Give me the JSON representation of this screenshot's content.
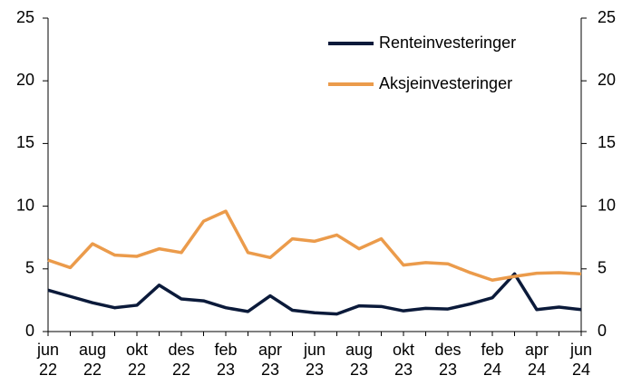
{
  "chart_data": {
    "type": "line",
    "categories": [
      "jun 22",
      null,
      "aug 22",
      null,
      "okt 22",
      null,
      "des 22",
      null,
      "feb 23",
      null,
      "apr 23",
      null,
      "jun 23",
      null,
      "aug 23",
      null,
      "okt 23",
      null,
      "des 23",
      null,
      "feb 24",
      null,
      "apr 24",
      null,
      "jun 24"
    ],
    "series": [
      {
        "name": "Renteinvesteringer",
        "color": "#0b1a3a",
        "values": [
          3.3,
          2.8,
          2.3,
          1.9,
          2.1,
          3.7,
          2.6,
          2.45,
          1.9,
          1.6,
          2.85,
          1.7,
          1.5,
          1.4,
          2.05,
          2.0,
          1.65,
          1.85,
          1.8,
          2.2,
          2.7,
          4.6,
          1.75,
          1.95,
          1.75
        ]
      },
      {
        "name": "Aksjeinvesteringer",
        "color": "#eb9b4b",
        "values": [
          5.7,
          5.1,
          7.0,
          6.1,
          6.0,
          6.6,
          6.3,
          8.8,
          9.6,
          6.3,
          5.9,
          7.4,
          7.2,
          7.7,
          6.6,
          7.4,
          5.3,
          5.5,
          5.4,
          4.7,
          4.1,
          4.4,
          4.65,
          4.7,
          4.6
        ]
      }
    ],
    "ylim": [
      0,
      25
    ],
    "yticks": [
      0,
      5,
      10,
      15,
      20,
      25
    ],
    "y2lim": [
      0,
      25
    ],
    "y2ticks": [
      0,
      5,
      10,
      15,
      20,
      25
    ],
    "legend": "upper right"
  }
}
